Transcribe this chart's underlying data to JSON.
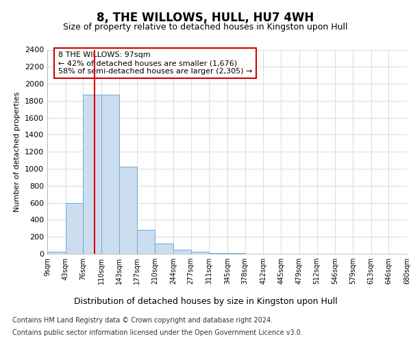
{
  "title": "8, THE WILLOWS, HULL, HU7 4WH",
  "subtitle": "Size of property relative to detached houses in Kingston upon Hull",
  "xlabel": "Distribution of detached houses by size in Kingston upon Hull",
  "ylabel": "Number of detached properties",
  "footer_line1": "Contains HM Land Registry data © Crown copyright and database right 2024.",
  "footer_line2": "Contains public sector information licensed under the Open Government Licence v3.0.",
  "bin_edges": [
    9,
    43,
    76,
    110,
    143,
    177,
    210,
    244,
    277,
    311,
    345,
    378,
    412,
    445,
    479,
    512,
    546,
    579,
    613,
    646,
    680
  ],
  "bar_heights": [
    25,
    600,
    1875,
    1875,
    1025,
    285,
    120,
    50,
    25,
    10,
    5,
    2,
    1,
    0,
    0,
    0,
    0,
    0,
    0,
    0
  ],
  "bar_color": "#ccddf0",
  "bar_edge_color": "#6aaad4",
  "property_size": 97,
  "vline_color": "#dd0000",
  "ylim": [
    0,
    2400
  ],
  "yticks": [
    0,
    200,
    400,
    600,
    800,
    1000,
    1200,
    1400,
    1600,
    1800,
    2000,
    2200,
    2400
  ],
  "annotation_text": "8 THE WILLOWS: 97sqm\n← 42% of detached houses are smaller (1,676)\n58% of semi-detached houses are larger (2,305) →",
  "annotation_box_color": "#ffffff",
  "annotation_box_edge": "#cc0000",
  "grid_color": "#cccccc",
  "background_color": "#ffffff",
  "title_fontsize": 12,
  "subtitle_fontsize": 9,
  "ylabel_fontsize": 8,
  "xlabel_fontsize": 9,
  "ytick_fontsize": 8,
  "xtick_fontsize": 7,
  "annotation_fontsize": 8,
  "footer_fontsize": 7
}
